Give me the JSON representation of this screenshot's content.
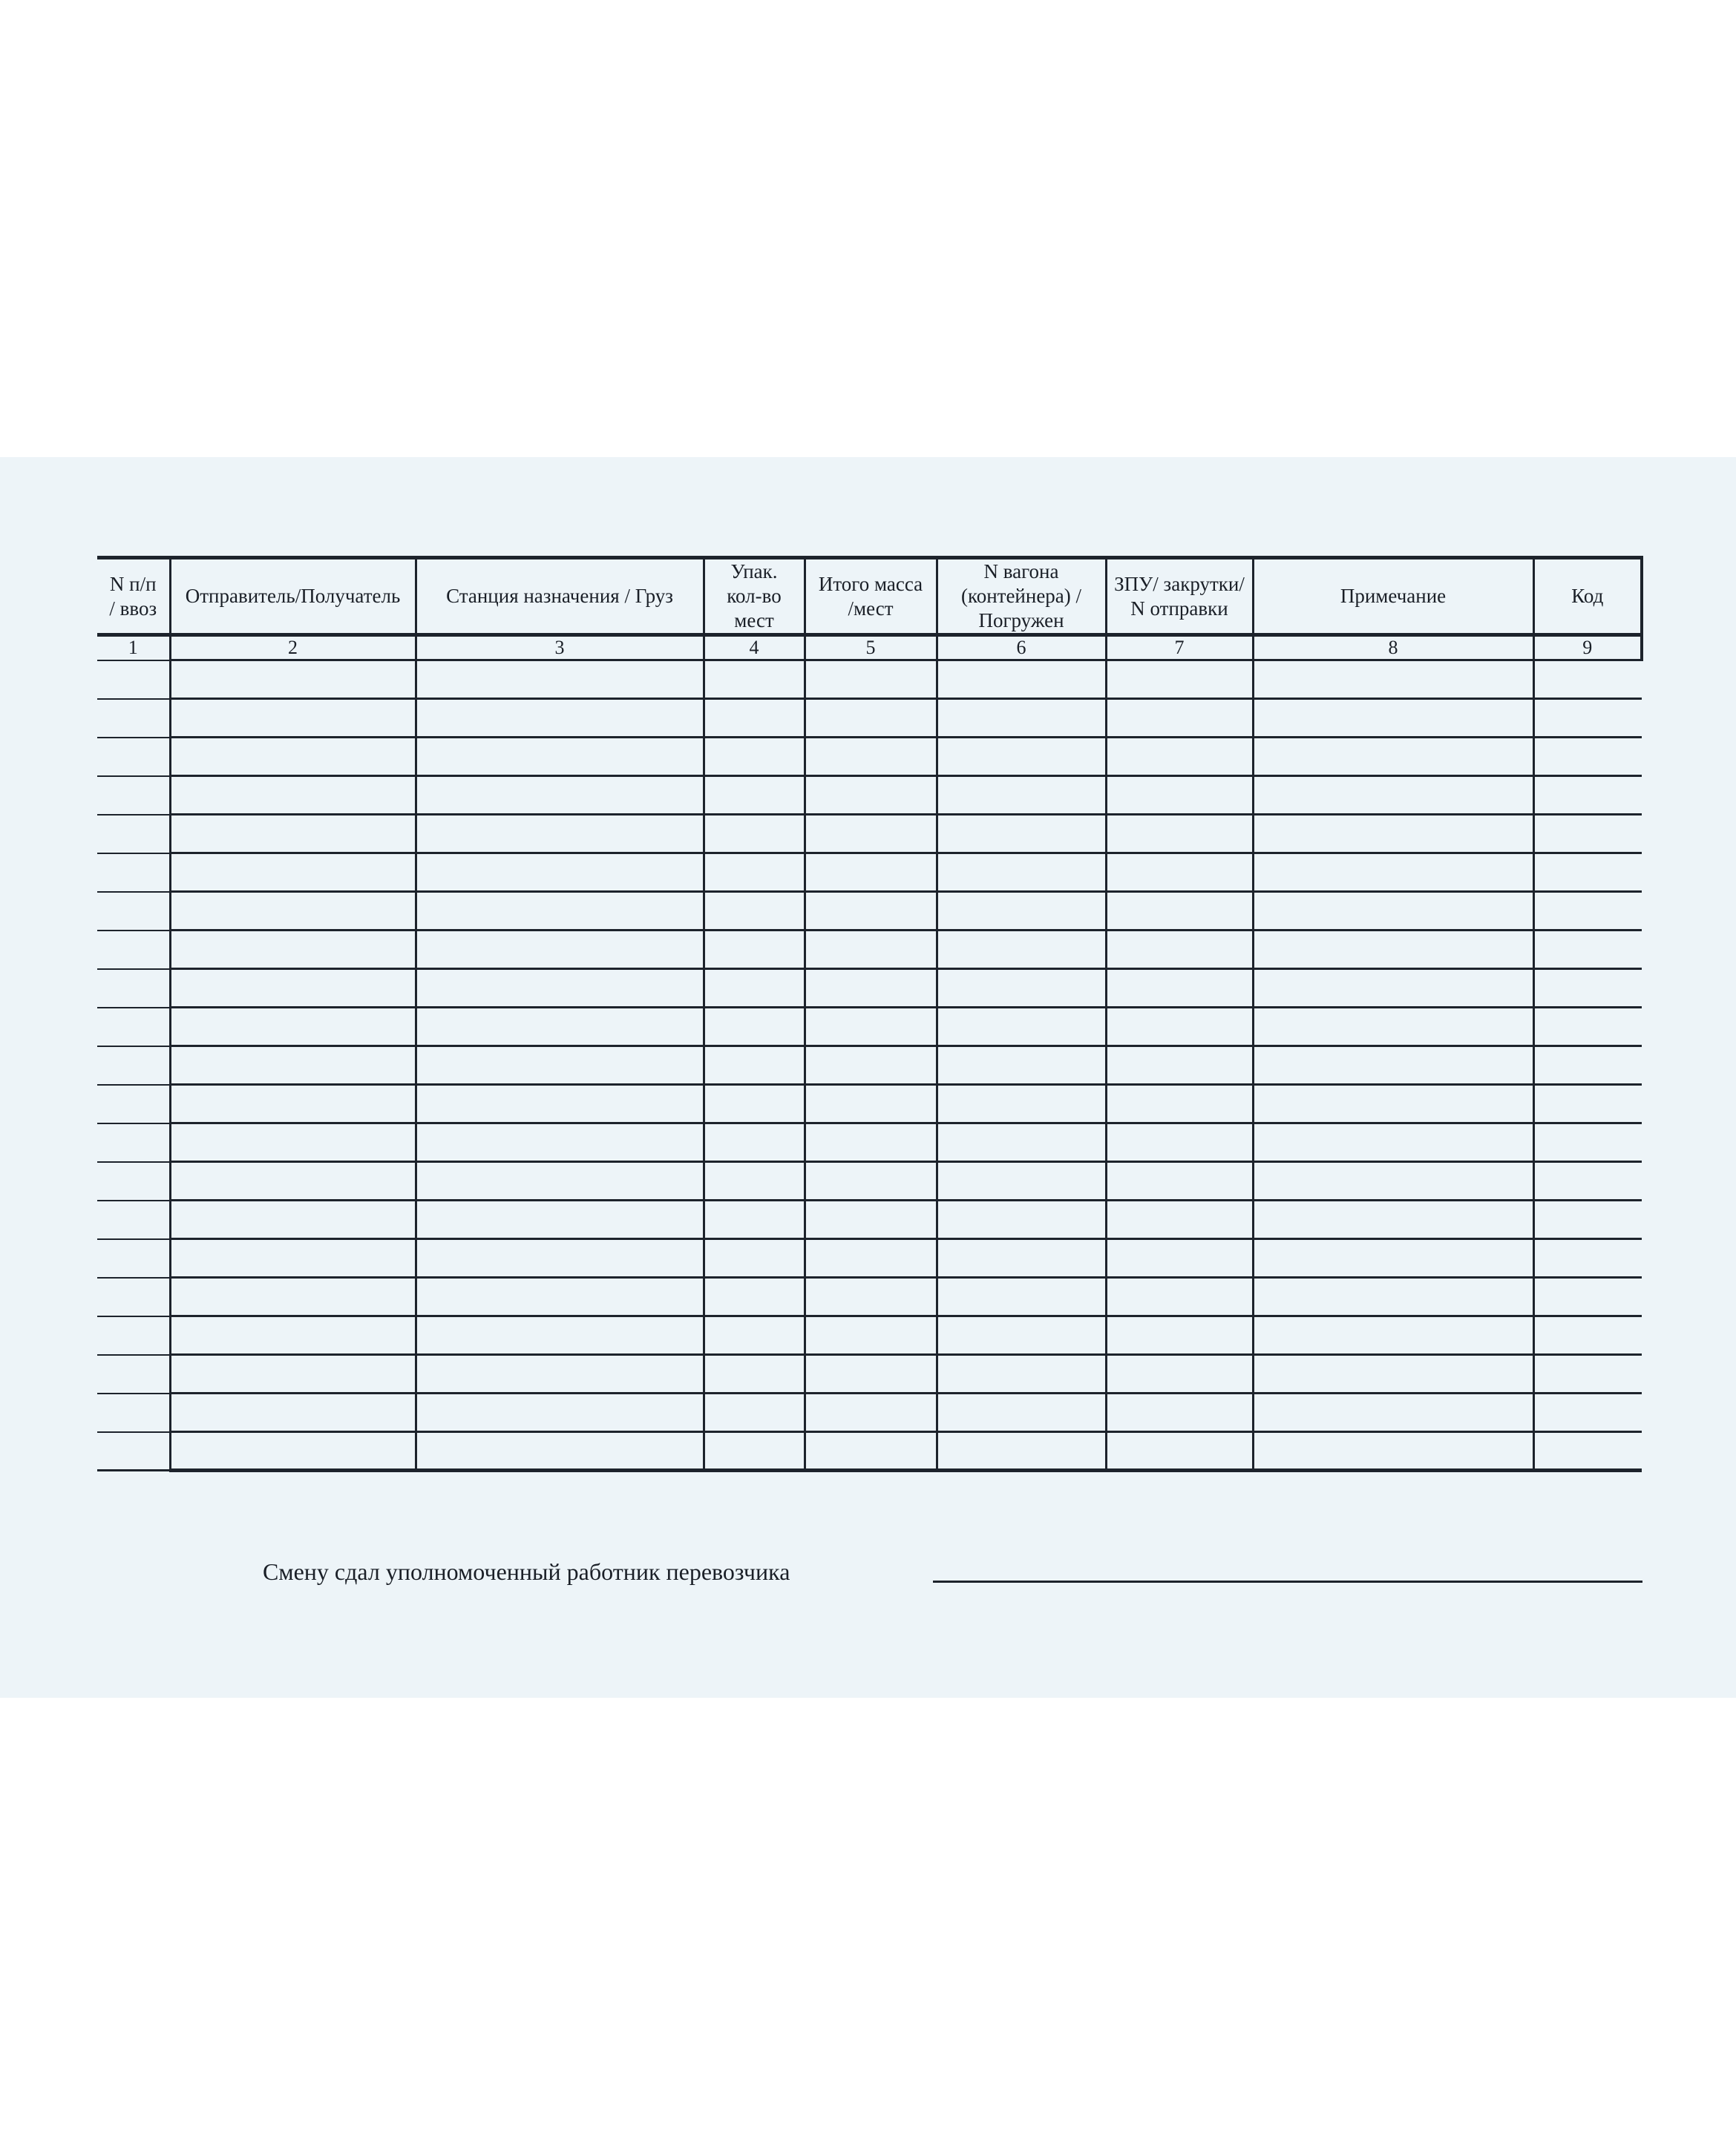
{
  "colors": {
    "paper": "#ffffff",
    "panel": "#edf4f8",
    "line": "#1d232c",
    "text": "#1a1f27"
  },
  "table": {
    "columns": [
      {
        "number": "1",
        "label": "N п/п\n/ ввоз"
      },
      {
        "number": "2",
        "label": "Отправитель/Получатель"
      },
      {
        "number": "3",
        "label": "Станция назначения / Груз"
      },
      {
        "number": "4",
        "label": "Упак.\nкол-во\nмест"
      },
      {
        "number": "5",
        "label": "Итого масса\n/мест"
      },
      {
        "number": "6",
        "label": "N вагона\n(контейнера) /\nПогружен"
      },
      {
        "number": "7",
        "label": "ЗПУ/ закрутки/\nN отправки"
      },
      {
        "number": "8",
        "label": "Примечание"
      },
      {
        "number": "9",
        "label": "Код"
      }
    ],
    "body_row_count": 21,
    "body_cells_content": ""
  },
  "footer": {
    "handover_label": "Смену сдал уполномоченный работник перевозчика",
    "signature_value": ""
  }
}
